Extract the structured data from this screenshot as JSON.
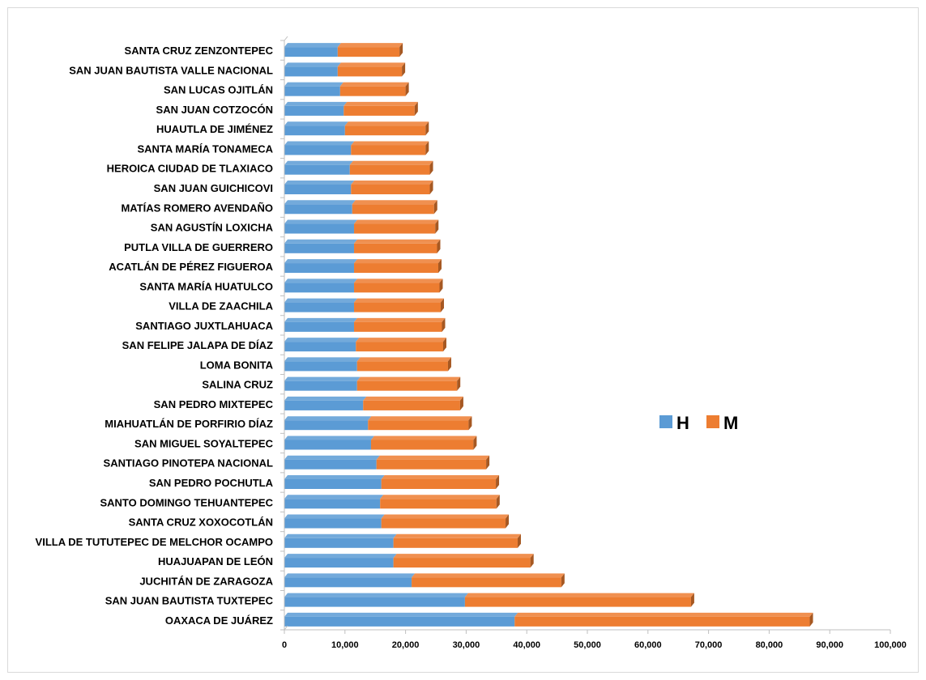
{
  "chart_data": {
    "type": "bar",
    "orientation": "horizontal",
    "stacked": true,
    "title": "",
    "xlabel": "",
    "ylabel": "",
    "xlim": [
      0,
      100000
    ],
    "ticks": [
      0,
      10000,
      20000,
      30000,
      40000,
      50000,
      60000,
      70000,
      80000,
      90000,
      100000
    ],
    "tick_labels": [
      "0",
      "10,000",
      "20,000",
      "30,000",
      "40,000",
      "50,000",
      "60,000",
      "70,000",
      "80,000",
      "90,000",
      "100,000"
    ],
    "grid": false,
    "legend_position": "right",
    "categories": [
      "OAXACA DE JUÁREZ",
      "SAN JUAN BAUTISTA TUXTEPEC",
      "JUCHITÁN DE ZARAGOZA",
      "HUAJUAPAN DE LEÓN",
      "VILLA DE TUTUTEPEC DE MELCHOR OCAMPO",
      "SANTA CRUZ XOXOCOTLÁN",
      "SANTO DOMINGO TEHUANTEPEC",
      "SAN PEDRO POCHUTLA",
      "SANTIAGO PINOTEPA NACIONAL",
      "SAN MIGUEL SOYALTEPEC",
      "MIAHUATLÁN DE PORFIRIO DÍAZ",
      "SAN PEDRO MIXTEPEC",
      "SALINA CRUZ",
      "LOMA BONITA",
      "SAN FELIPE JALAPA DE DÍAZ",
      "SANTIAGO JUXTLAHUACA",
      "VILLA DE ZAACHILA",
      "SANTA MARÍA HUATULCO",
      "ACATLÁN DE PÉREZ FIGUEROA",
      "PUTLA VILLA DE GUERRERO",
      "SAN AGUSTÍN LOXICHA",
      "MATÍAS ROMERO AVENDAÑO",
      "SAN JUAN GUICHICOVI",
      "HEROICA CIUDAD DE TLAXIACO",
      "SANTA MARÍA TONAMECA",
      "HUAUTLA DE JIMÉNEZ",
      "SAN JUAN COTZOCÓN",
      "SAN LUCAS OJITLÁN",
      "SAN JUAN BAUTISTA VALLE NACIONAL",
      "SANTA CRUZ ZENZONTEPEC"
    ],
    "series": [
      {
        "name": "H",
        "color": "#5b9bd5",
        "values": [
          38000,
          29800,
          21000,
          18000,
          18000,
          16000,
          15800,
          16000,
          15200,
          14300,
          13800,
          13000,
          12000,
          12000,
          11800,
          11500,
          11500,
          11500,
          11500,
          11500,
          11500,
          11200,
          11000,
          10800,
          11000,
          10000,
          9800,
          9200,
          8800,
          8800
        ]
      },
      {
        "name": "M",
        "color": "#ed7d31",
        "values": [
          48700,
          37300,
          24700,
          22600,
          20500,
          20500,
          19200,
          18900,
          18100,
          16900,
          16600,
          16000,
          16500,
          15000,
          14400,
          14500,
          14300,
          14100,
          13900,
          13700,
          13400,
          13500,
          13000,
          13200,
          12300,
          13300,
          11700,
          10800,
          10600,
          10200
        ]
      }
    ]
  }
}
